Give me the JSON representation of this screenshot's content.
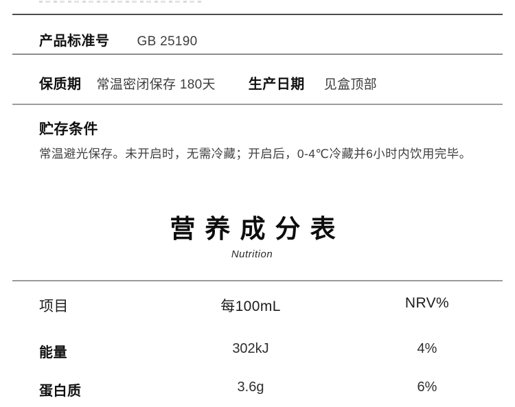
{
  "specs": {
    "standard": {
      "label": "产品标准号",
      "value": "GB 25190"
    },
    "shelf_life": {
      "label": "保质期",
      "value": "常温密闭保存 180天"
    },
    "production_date": {
      "label": "生产日期",
      "value": "见盒顶部"
    }
  },
  "storage": {
    "title": "贮存条件",
    "body": "常温避光保存。未开启时，无需冷藏；开启后，0-4℃冷藏并6小时内饮用完毕。"
  },
  "nutrition": {
    "title": "营养成分表",
    "subtitle": "Nutrition",
    "table": {
      "headers": {
        "item": "项目",
        "per": "每100mL",
        "nrv": "NRV%"
      },
      "rows": [
        {
          "item": "能量",
          "per": "302kJ",
          "nrv": "4%"
        },
        {
          "item": "蛋白质",
          "per": "3.6g",
          "nrv": "6%"
        }
      ]
    }
  },
  "chart_data": {
    "type": "table",
    "title": "营养成分表",
    "subtitle": "Nutrition",
    "columns": [
      "项目",
      "每100mL",
      "NRV%"
    ],
    "rows": [
      [
        "能量",
        "302kJ",
        "4%"
      ],
      [
        "蛋白质",
        "3.6g",
        "6%"
      ]
    ]
  }
}
